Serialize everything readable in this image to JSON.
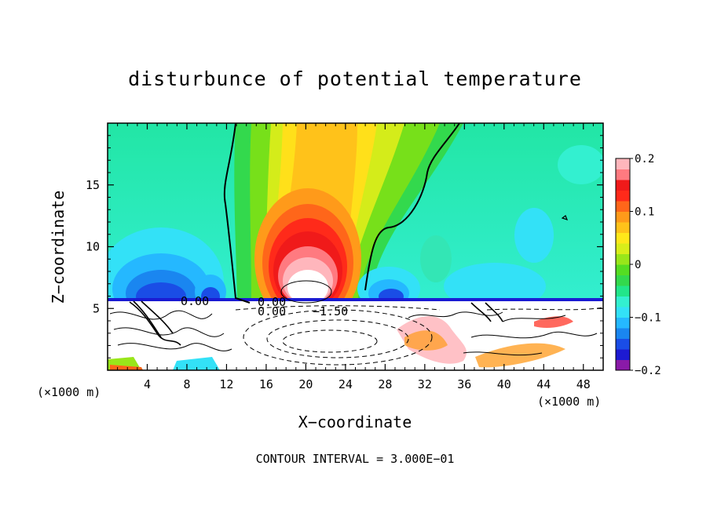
{
  "chart_data": {
    "type": "heatmap",
    "title": "disturbunce of potential temperature",
    "xlabel": "X−coordinate",
    "ylabel": "Z−coordinate",
    "x_unit": "(×1000 m)",
    "x_ticks": [
      4,
      8,
      12,
      16,
      20,
      24,
      28,
      32,
      36,
      40,
      44,
      48
    ],
    "y_ticks": [
      5,
      10,
      15
    ],
    "xlim": [
      0,
      50
    ],
    "ylim": [
      0,
      20
    ],
    "colorbar": {
      "ticks": [
        "0.2",
        "0.1",
        "0",
        "−0.1",
        "−0.2"
      ],
      "tick_values": [
        0.2,
        0.1,
        0,
        -0.1,
        -0.2
      ],
      "range": [
        -0.2,
        0.2
      ],
      "colors": [
        "#8a1aa8",
        "#1d1ad2",
        "#1a4de6",
        "#1a86f0",
        "#25b8ff",
        "#33e1f7",
        "#33f0d0",
        "#22e68a",
        "#33d94d",
        "#55dd22",
        "#99e61a",
        "#d9ee1a",
        "#ffe81a",
        "#ffc21a",
        "#ff9a1a",
        "#ff661a",
        "#ff2a1a",
        "#f01a1a",
        "#ff7a80",
        "#ffb6bc"
      ]
    },
    "contour_labels": [
      "0.00",
      "0.00",
      "0.00",
      "−1.50"
    ],
    "contour_interval": "CONTOUR INTERVAL = 3.000E−01"
  }
}
